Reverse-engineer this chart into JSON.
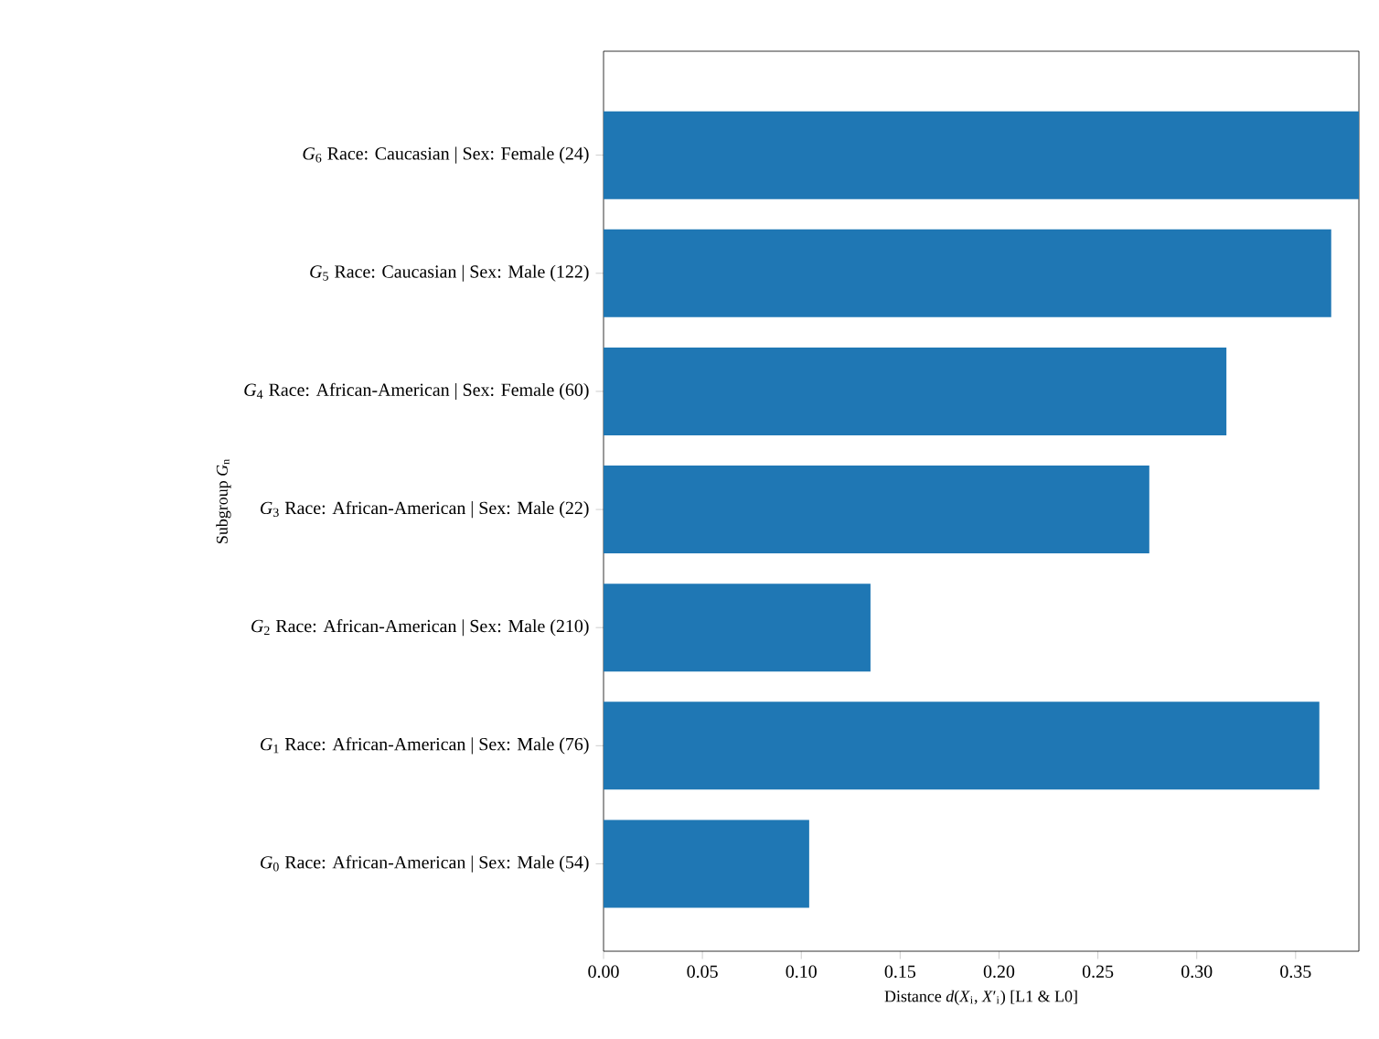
{
  "chart_data": {
    "type": "bar",
    "orientation": "horizontal",
    "categories": [
      "*G*$_{6}$ Race: Caucasian | Sex: Female (24)",
      "*G*$_{5}$ Race: Caucasian | Sex: Male (122)",
      "*G*$_{4}$ Race: African-American | Sex: Female (60)",
      "*G*$_{3}$ Race: African-American | Sex: Male (22)",
      "*G*$_{2}$ Race: African-American | Sex: Male (210)",
      "*G*$_{1}$ Race: African-American | Sex: Male (76)",
      "*G*$_{0}$ Race: African-American | Sex: Male (54)"
    ],
    "values": [
      0.382,
      0.368,
      0.315,
      0.276,
      0.135,
      0.362,
      0.104
    ],
    "color": "#1f77b4",
    "xlabel": "Distance *d*(*X*$_{i}$, *X*′$_{i}$) [L1 & L0]",
    "ylabel": "Subgroup *G*$_{n}$",
    "xlim": [
      0,
      0.382
    ],
    "xticks": [
      {
        "value": 0,
        "label": "0.00"
      },
      {
        "value": 0.05,
        "label": "0.05"
      },
      {
        "value": 0.1,
        "label": "0.10"
      },
      {
        "value": 0.15,
        "label": "0.15"
      },
      {
        "value": 0.2,
        "label": "0.20"
      },
      {
        "value": 0.25,
        "label": "0.25"
      },
      {
        "value": 0.3,
        "label": "0.30"
      },
      {
        "value": 0.35,
        "label": "0.35"
      }
    ]
  }
}
